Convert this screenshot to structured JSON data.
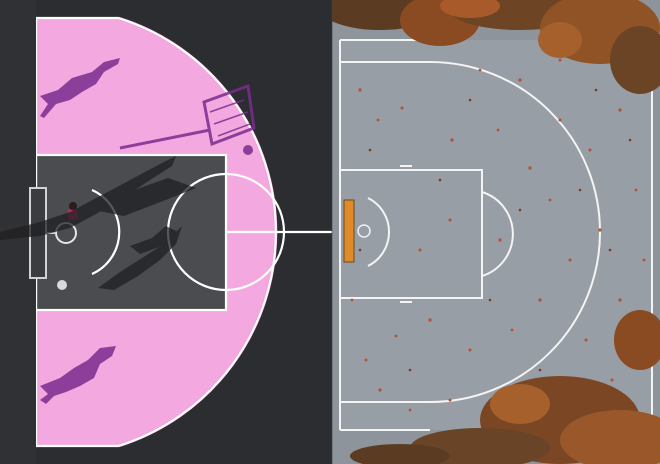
{
  "scene": {
    "description_tags": [
      "aerial-view",
      "basketball-court",
      "pink-court",
      "grey-court",
      "autumn-leaves",
      "player-shadows"
    ]
  },
  "colors": {
    "asphalt_dark": "#2b2d30",
    "court_pink": "#f3a9df",
    "court_pink_shade": "#e792d3",
    "key_grey": "#4a4c50",
    "right_court_grey": "#8d949b",
    "right_court_light": "#a6acb2",
    "line_white": "#ffffff",
    "shadow_purple": "#7a2c8f",
    "leaf_orange": "#b5522a",
    "leaf_brown": "#7c3a1e",
    "foliage_dark": "#4a3a26",
    "backboard_orange": "#e08a2a"
  }
}
